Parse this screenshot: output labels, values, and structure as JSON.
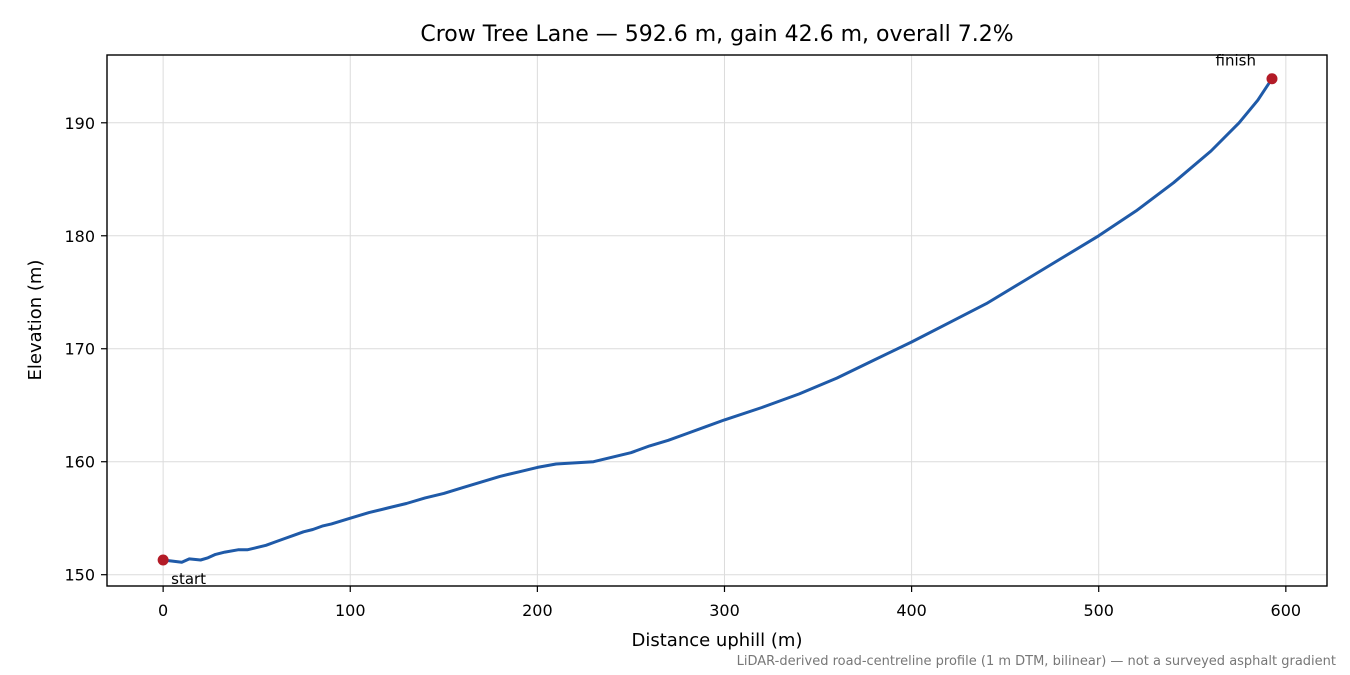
{
  "chart_data": {
    "type": "line",
    "title": "Crow Tree Lane — 592.6 m, gain 42.6 m, overall 7.2%",
    "xlabel": "Distance uphill (m)",
    "ylabel": "Elevation (m)",
    "xlim": [
      -30,
      622
    ],
    "ylim": [
      149,
      196
    ],
    "xticks": [
      0,
      100,
      200,
      300,
      400,
      500,
      600
    ],
    "yticks": [
      150,
      160,
      170,
      180,
      190
    ],
    "grid": true,
    "series": [
      {
        "color": "#1f5aa8",
        "x": [
          0,
          5,
          10,
          14,
          20,
          24,
          28,
          33,
          40,
          45,
          50,
          55,
          60,
          65,
          70,
          75,
          80,
          85,
          90,
          100,
          110,
          120,
          130,
          140,
          150,
          160,
          170,
          180,
          190,
          200,
          210,
          220,
          230,
          240,
          250,
          260,
          270,
          280,
          290,
          300,
          320,
          340,
          360,
          380,
          400,
          420,
          440,
          460,
          480,
          500,
          520,
          540,
          560,
          575,
          585,
          592.6
        ],
        "y": [
          151.3,
          151.2,
          151.1,
          151.4,
          151.3,
          151.5,
          151.8,
          152.0,
          152.2,
          152.2,
          152.4,
          152.6,
          152.9,
          153.2,
          153.5,
          153.8,
          154.0,
          154.3,
          154.5,
          155.0,
          155.5,
          155.9,
          156.3,
          156.8,
          157.2,
          157.7,
          158.2,
          158.7,
          159.1,
          159.5,
          159.8,
          159.9,
          160.0,
          160.4,
          160.8,
          161.4,
          161.9,
          162.5,
          163.1,
          163.7,
          164.8,
          166.0,
          167.4,
          169.0,
          170.6,
          172.3,
          174.0,
          176.0,
          178.0,
          180.0,
          182.2,
          184.7,
          187.5,
          190.0,
          192.0,
          193.9
        ]
      }
    ],
    "markers": [
      {
        "x": 0,
        "y": 151.3,
        "label": "start",
        "color": "#b31b27"
      },
      {
        "x": 592.6,
        "y": 193.9,
        "label": "finish",
        "color": "#b31b27"
      }
    ],
    "footnote": "LiDAR-derived road-centreline profile (1 m DTM, bilinear) — not a surveyed asphalt gradient"
  }
}
